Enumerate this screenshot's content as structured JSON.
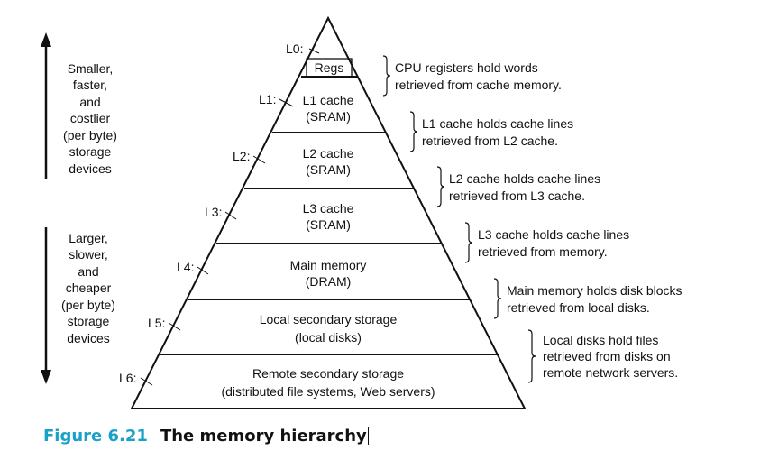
{
  "figure": {
    "number": "Figure 6.21",
    "title": "The memory hierarchy"
  },
  "side_notes": {
    "top": [
      "Smaller,",
      "faster,",
      "and",
      "costlier",
      "(per byte)",
      "storage",
      "devices"
    ],
    "bottom": [
      "Larger,",
      "slower,",
      "and",
      "cheaper",
      "(per byte)",
      "storage",
      "devices"
    ]
  },
  "levels": [
    {
      "id": "L0",
      "label": "L0:",
      "tier": [
        "Regs"
      ],
      "description": [
        "CPU registers hold words",
        "retrieved from cache memory."
      ]
    },
    {
      "id": "L1",
      "label": "L1:",
      "tier": [
        "L1 cache",
        "(SRAM)"
      ],
      "description": [
        "L1 cache holds cache lines",
        "retrieved from L2 cache."
      ]
    },
    {
      "id": "L2",
      "label": "L2:",
      "tier": [
        "L2 cache",
        "(SRAM)"
      ],
      "description": [
        "L2 cache holds cache lines",
        "retrieved from L3 cache."
      ]
    },
    {
      "id": "L3",
      "label": "L3:",
      "tier": [
        "L3 cache",
        "(SRAM)"
      ],
      "description": [
        "L3 cache holds cache lines",
        "retrieved from memory."
      ]
    },
    {
      "id": "L4",
      "label": "L4:",
      "tier": [
        "Main memory",
        "(DRAM)"
      ],
      "description": [
        "Main memory holds disk blocks",
        "retrieved from local disks."
      ]
    },
    {
      "id": "L5",
      "label": "L5:",
      "tier": [
        "Local secondary storage",
        "(local disks)"
      ],
      "description": [
        "Local disks hold files",
        "retrieved from disks on",
        "remote network servers."
      ]
    },
    {
      "id": "L6",
      "label": "L6:",
      "tier": [
        "Remote secondary storage",
        "(distributed file systems, Web servers)"
      ],
      "description": []
    }
  ]
}
